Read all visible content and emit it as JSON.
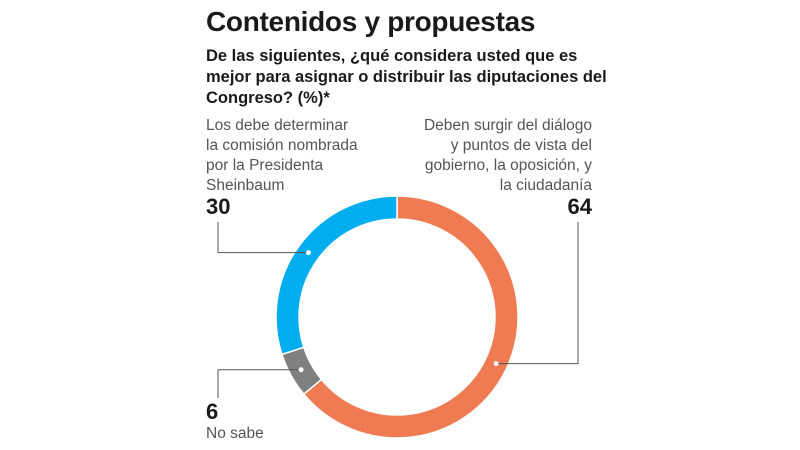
{
  "title": "Contenidos y propuestas",
  "subtitle": "De las siguientes, ¿qué considera usted que es mejor para asignar o distribuir las diputaciones del Congreso? (%)*",
  "colors": {
    "orange": "#f07a52",
    "blue": "#00adef",
    "gray": "#808080",
    "leader": "#555555"
  },
  "chart_data": {
    "type": "pie",
    "donut": true,
    "categories": [
      "Deben surgir del diálogo y puntos de vista del gobierno, la oposición, y la ciudadanía",
      "No sabe",
      "Los debe determinar la comisión nombrada por la Presidenta Sheinbaum"
    ],
    "values": [
      64,
      6,
      30
    ],
    "value_labels": [
      "64",
      "6",
      "30"
    ],
    "label_lines": [
      [
        "Deben surgir del diálogo",
        "y puntos de vista del",
        "gobierno, la oposición, y",
        "la ciudadanía"
      ],
      [
        "No sabe"
      ],
      [
        "Los debe determinar",
        "la comisión nombrada",
        "por la Presidenta",
        "Sheinbaum"
      ]
    ]
  }
}
